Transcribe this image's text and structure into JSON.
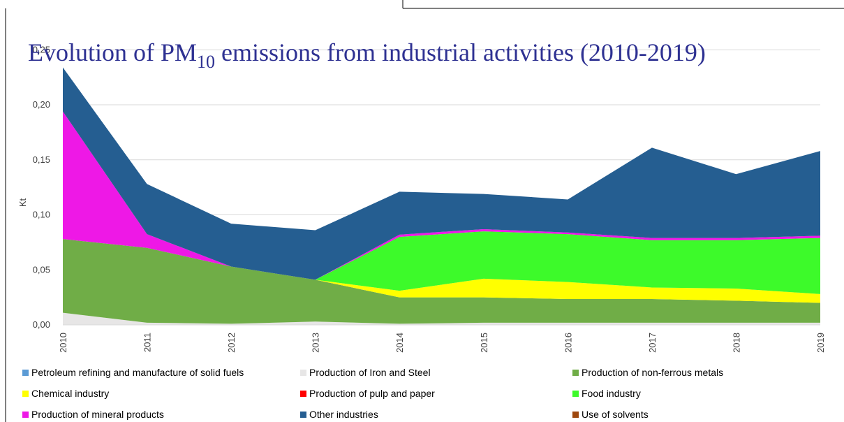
{
  "chart_data": {
    "type": "stacked_area",
    "title": [
      "Evolution of PM",
      "10",
      " emissions from industrial activities (2010-2019)"
    ],
    "y_label": "Kt",
    "categories": [
      "2010",
      "2011",
      "2012",
      "2013",
      "2014",
      "2015",
      "2016",
      "2017",
      "2018",
      "2019"
    ],
    "ylim": [
      0,
      0.25
    ],
    "yticks": [
      {
        "value": 0,
        "label": "0,00"
      },
      {
        "value": 0.05,
        "label": "0,05"
      },
      {
        "value": 0.1,
        "label": "0,10"
      },
      {
        "value": 0.15,
        "label": "0,15"
      },
      {
        "value": 0.2,
        "label": "0,20"
      },
      {
        "value": 0.25,
        "label": "0,25"
      }
    ],
    "grid": true,
    "series": [
      {
        "name": "Petroleum refining and manufacture of solid fuels",
        "color": "#5b9bd5",
        "values": [
          0,
          0,
          0,
          0,
          0,
          0,
          0,
          0,
          0,
          0
        ]
      },
      {
        "name": "Production of Iron and Steel",
        "color": "#e7e6e6",
        "values": [
          0.011,
          0.002,
          0.001,
          0.003,
          0.001,
          0.002,
          0.002,
          0.002,
          0.002,
          0.002
        ]
      },
      {
        "name": "Production of non-ferrous metals",
        "color": "#70ad47",
        "values": [
          0.067,
          0.068,
          0.052,
          0.038,
          0.024,
          0.023,
          0.0215,
          0.0215,
          0.02,
          0.018
        ]
      },
      {
        "name": "Chemical industry",
        "color": "#ffff00",
        "values": [
          0,
          0,
          0,
          0,
          0.006,
          0.017,
          0.0155,
          0.0105,
          0.011,
          0.008
        ]
      },
      {
        "name": "Production of pulp and paper",
        "color": "#ff0000",
        "values": [
          0,
          0,
          0,
          0,
          0,
          0,
          0,
          0,
          0,
          0
        ]
      },
      {
        "name": "Food industry",
        "color": "#3dfa2a",
        "values": [
          0,
          0,
          0,
          0,
          0.049,
          0.043,
          0.0435,
          0.043,
          0.044,
          0.051
        ]
      },
      {
        "name": "Production of mineral products",
        "color": "#ee18e6",
        "values": [
          0.116,
          0.0125,
          0,
          0,
          0.002,
          0.002,
          0.0015,
          0.002,
          0.002,
          0.002
        ]
      },
      {
        "name": "Other industries",
        "color": "#255e91",
        "values": [
          0.04,
          0.0455,
          0.039,
          0.045,
          0.039,
          0.032,
          0.03,
          0.082,
          0.058,
          0.077
        ]
      },
      {
        "name": "Use of solvents",
        "color": "#9e480e",
        "values": [
          0,
          0,
          0,
          0,
          0,
          0,
          0,
          0,
          0,
          0
        ]
      }
    ]
  }
}
